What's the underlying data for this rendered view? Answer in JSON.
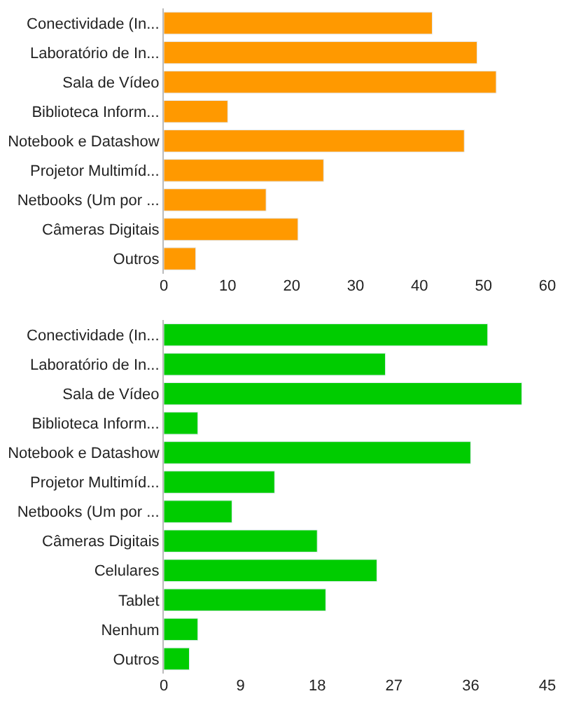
{
  "chart_data": [
    {
      "type": "bar",
      "orientation": "horizontal",
      "categories": [
        "Conectividade (In...",
        "Laboratório de In...",
        "Sala de Vídeo",
        "Biblioteca Inform...",
        "Notebook e Datashow",
        "Projetor Multimíd...",
        "Netbooks (Um por ...",
        "Câmeras Digitais",
        "Outros"
      ],
      "values": [
        42,
        49,
        52,
        10,
        47,
        25,
        16,
        21,
        5
      ],
      "color": "#ff9900",
      "xlim": [
        0,
        60
      ],
      "xticks": [
        0,
        10,
        20,
        30,
        40,
        50,
        60
      ]
    },
    {
      "type": "bar",
      "orientation": "horizontal",
      "categories": [
        "Conectividade (In...",
        "Laboratório de In...",
        "Sala de Vídeo",
        "Biblioteca Inform...",
        "Notebook e Datashow",
        "Projetor Multimíd...",
        "Netbooks (Um por ...",
        "Câmeras Digitais",
        "Celulares",
        "Tablet",
        "Nenhum",
        "Outros"
      ],
      "values": [
        38,
        26,
        42,
        4,
        36,
        13,
        8,
        18,
        25,
        19,
        4,
        3
      ],
      "color": "#00cc00",
      "xlim": [
        0,
        45
      ],
      "xticks": [
        0,
        9,
        18,
        27,
        36,
        45
      ]
    }
  ]
}
